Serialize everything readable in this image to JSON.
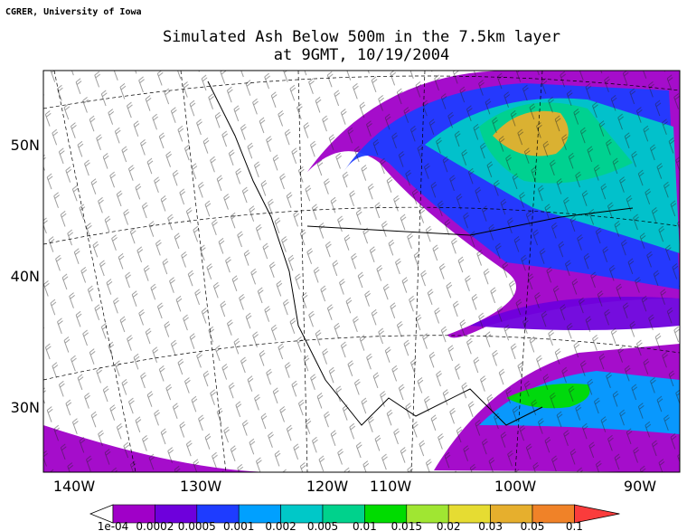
{
  "header": {
    "credit": "CGRER, University of Iowa",
    "title": [
      "Simulated Ash Below 500m in the 7.5km layer",
      "at 9GMT, 10/19/2004"
    ]
  },
  "map": {
    "lon_labels": [
      "140W",
      "130W",
      "120W",
      "110W",
      "100W",
      "90W"
    ],
    "lat_labels": [
      "50N",
      "40N",
      "30N"
    ]
  },
  "colorbar": {
    "labels": [
      "1e-04",
      "0.0002",
      "0.0005",
      "0.001",
      "0.002",
      "0.005",
      "0.01",
      "0.015",
      "0.02",
      "0.03",
      "0.05",
      "0.1"
    ],
    "under_color": "#ffffff",
    "colors": [
      "#a000c8",
      "#6e00dc",
      "#1e3cff",
      "#00a0ff",
      "#00c8c8",
      "#00d28c",
      "#00dc00",
      "#a0e632",
      "#e6dc32",
      "#e6af2d",
      "#f08228"
    ],
    "over_color": "#fa3c3c"
  }
}
